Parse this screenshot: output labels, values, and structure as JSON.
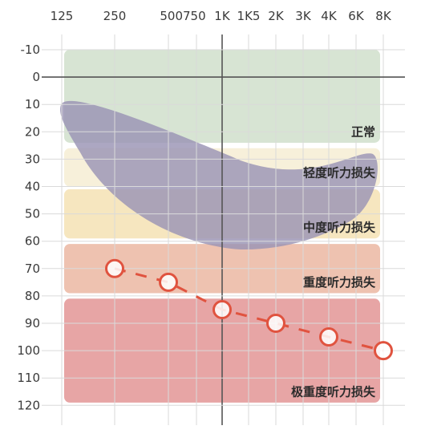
{
  "chart_data": {
    "type": "line",
    "title": "",
    "xlabel": "",
    "ylabel": "",
    "x_ticks": [
      "125",
      "250",
      "500",
      "750",
      "1K",
      "1K5",
      "2K",
      "3K",
      "4K",
      "6K",
      "8K"
    ],
    "y_ticks": [
      "-10",
      "0",
      "10",
      "20",
      "30",
      "40",
      "50",
      "60",
      "70",
      "80",
      "90",
      "100",
      "110",
      "120"
    ],
    "ylim": [
      -10,
      120
    ],
    "y_inverted": true,
    "grid": true,
    "bands": [
      {
        "label": "正常",
        "from": -10,
        "to": 24,
        "color": "#d7e4d3"
      },
      {
        "label": "轻度听力损失",
        "from": 26,
        "to": 40,
        "color": "#f7f0da"
      },
      {
        "label": "中度听力损失",
        "from": 41,
        "to": 59,
        "color": "#f6e6bf"
      },
      {
        "label": "重度听力损失",
        "from": 61,
        "to": 79,
        "color": "#eec2b0"
      },
      {
        "label": "极重度听力损失",
        "from": 81,
        "to": 119,
        "color": "#e7a5a5"
      }
    ],
    "speech_banana_color": "#9a94b4",
    "series": [
      {
        "marker": "circle",
        "color": "#e0533f",
        "x": [
          "250",
          "500",
          "1K",
          "2K",
          "4K",
          "8K"
        ],
        "y": [
          70,
          75,
          85,
          90,
          95,
          100
        ]
      }
    ]
  }
}
